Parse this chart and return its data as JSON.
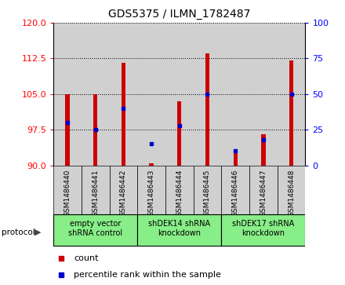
{
  "title": "GDS5375 / ILMN_1782487",
  "samples": [
    "GSM1486440",
    "GSM1486441",
    "GSM1486442",
    "GSM1486443",
    "GSM1486444",
    "GSM1486445",
    "GSM1486446",
    "GSM1486447",
    "GSM1486448"
  ],
  "count_values": [
    105.0,
    105.0,
    111.5,
    90.5,
    103.5,
    113.5,
    92.5,
    96.5,
    112.0
  ],
  "percentile_values": [
    30,
    25,
    40,
    15,
    28,
    50,
    10,
    18,
    50
  ],
  "ylim_left": [
    90,
    120
  ],
  "ylim_right": [
    0,
    100
  ],
  "yticks_left": [
    90,
    97.5,
    105,
    112.5,
    120
  ],
  "yticks_right": [
    0,
    25,
    50,
    75,
    100
  ],
  "bar_color": "#cc0000",
  "dot_color": "#0000cc",
  "bar_bottom": 90,
  "bar_width": 0.15,
  "protocols": [
    {
      "label": "empty vector\nshRNA control",
      "start": 0,
      "end": 3
    },
    {
      "label": "shDEK14 shRNA\nknockdown",
      "start": 3,
      "end": 6
    },
    {
      "label": "shDEK17 shRNA\nknockdown",
      "start": 6,
      "end": 9
    }
  ],
  "protocol_green": "#88ee88",
  "legend_count_label": "count",
  "legend_percentile_label": "percentile rank within the sample",
  "protocol_label": "protocol",
  "col_bg_color": "#d0d0d0",
  "plot_bg_color": "#ffffff"
}
